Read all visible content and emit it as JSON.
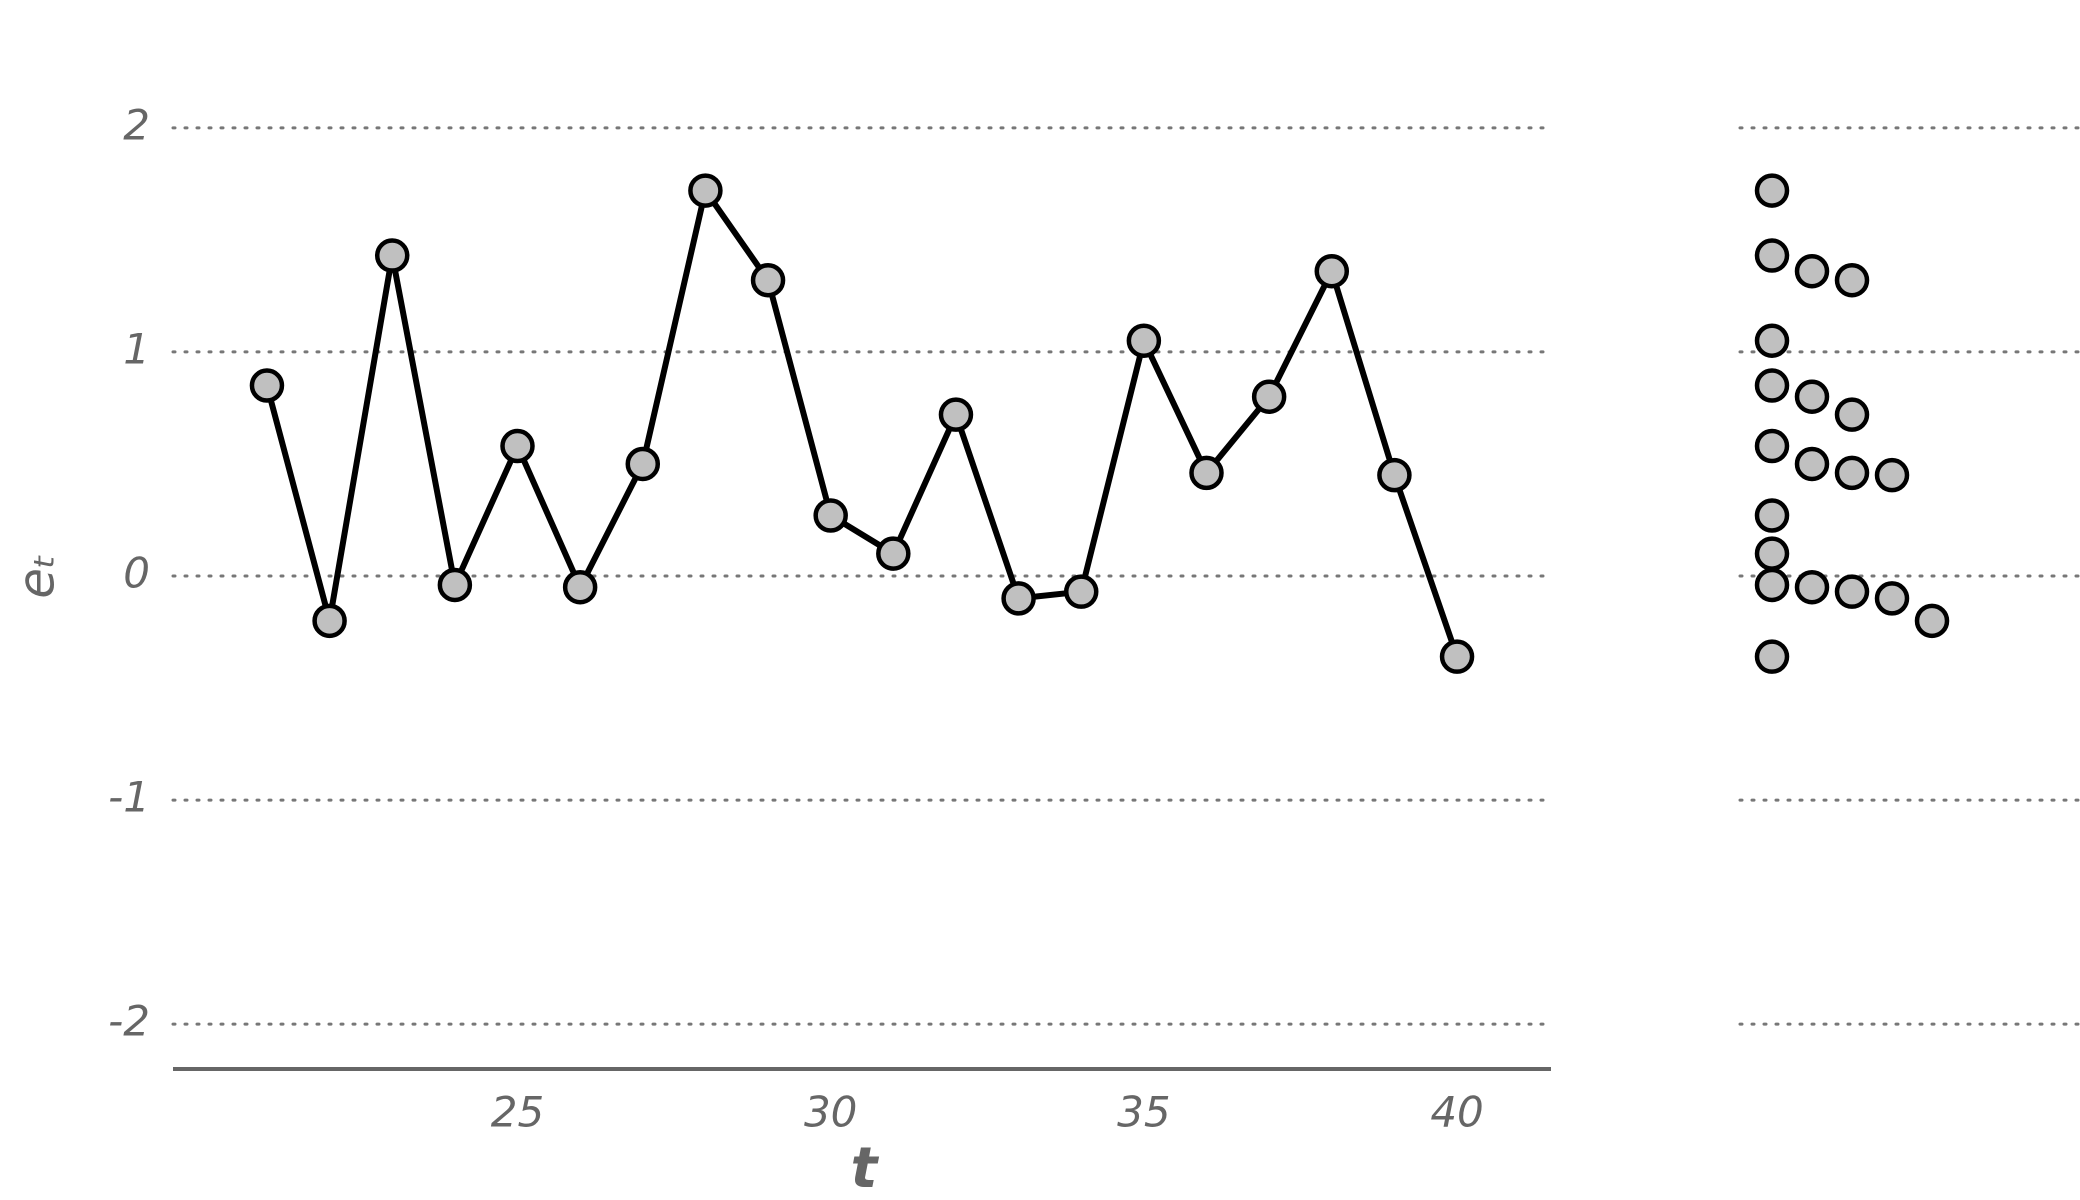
{
  "chart_data": {
    "type": "line",
    "xlabel": "t",
    "ylabel": "eₜ",
    "x": [
      21,
      22,
      23,
      24,
      25,
      26,
      27,
      28,
      29,
      30,
      31,
      32,
      33,
      34,
      35,
      36,
      37,
      38,
      39,
      40
    ],
    "values": [
      0.85,
      -0.2,
      1.43,
      -0.04,
      0.58,
      -0.05,
      0.5,
      1.72,
      1.32,
      0.27,
      0.1,
      0.72,
      -0.1,
      -0.07,
      1.05,
      0.46,
      0.8,
      1.36,
      0.45,
      -0.36
    ],
    "color": "#000000",
    "marker_color": "#c0c0c0",
    "xlim": [
      19.5,
      41.5
    ],
    "xticks": [
      25,
      30,
      35,
      40
    ],
    "ylim": [
      -2.2,
      2.2
    ],
    "yticks": [
      -2,
      -1,
      0,
      1,
      2
    ],
    "grid": true,
    "marginal": "dotplot"
  }
}
